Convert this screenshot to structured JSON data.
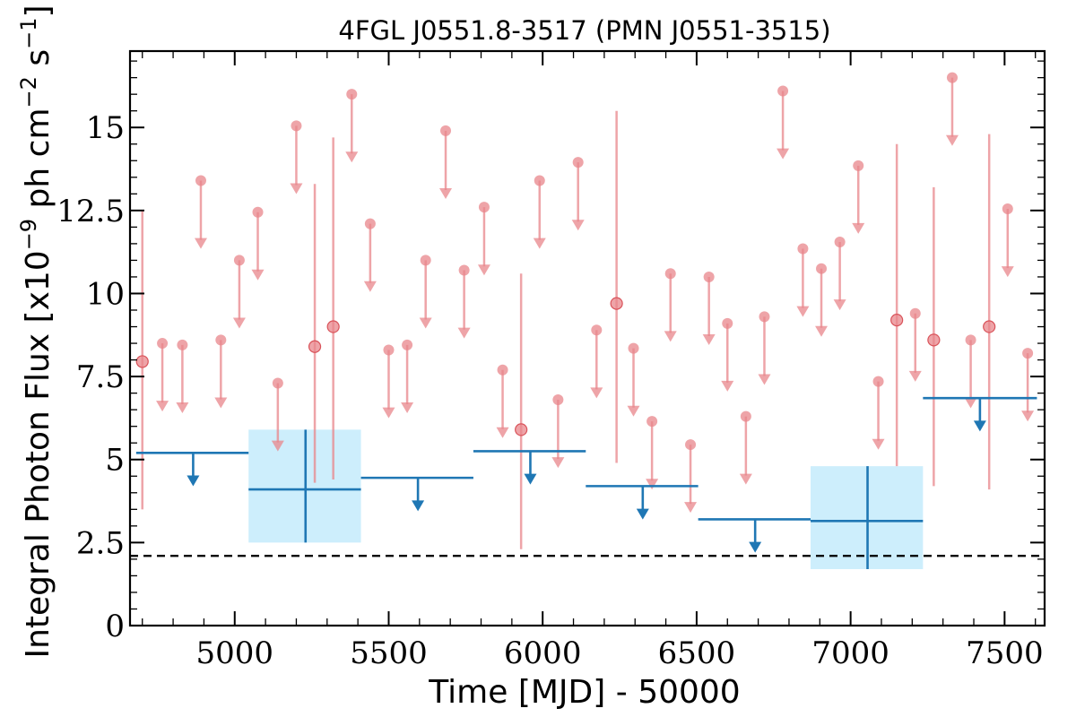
{
  "chart_data": {
    "type": "scatter",
    "title": "4FGL J0551.8-3517 (PMN J0551-3515)",
    "xlabel": "Time [MJD] - 50000",
    "ylabel_parts": [
      "Integral Photon Flux [x10",
      "−9",
      " ph cm",
      "−2",
      " s",
      "−1",
      "]"
    ],
    "xlim": [
      4660,
      7630
    ],
    "ylim": [
      0,
      17.3
    ],
    "x_ticks": [
      5000,
      5500,
      6000,
      6500,
      7000,
      7500
    ],
    "x_tick_labels": [
      "5000",
      "5500",
      "6000",
      "6500",
      "7000",
      "7500"
    ],
    "y_ticks": [
      0,
      2.5,
      5,
      7.5,
      10,
      12.5,
      15
    ],
    "y_tick_labels": [
      "0",
      "2.5",
      "5",
      "7.5",
      "10",
      "12.5",
      "15"
    ],
    "reference_line": {
      "y": 2.1,
      "style": "dashed",
      "color": "#000000"
    },
    "colors": {
      "short_bins": "#e8868b",
      "long_bins": "#1f77b4",
      "long_bins_band": "#cdeefc"
    },
    "series": [
      {
        "binning": "short",
        "detections": [
          {
            "x": 4700,
            "y": 7.95,
            "ylo": 3.5,
            "yhi": 12.5
          },
          {
            "x": 5260,
            "y": 8.4,
            "ylo": 4.3,
            "yhi": 13.3
          },
          {
            "x": 5320,
            "y": 9.0,
            "ylo": 4.4,
            "yhi": 14.7
          },
          {
            "x": 5930,
            "y": 5.9,
            "ylo": 2.3,
            "yhi": 10.6
          },
          {
            "x": 6240,
            "y": 9.7,
            "ylo": 4.9,
            "yhi": 15.5
          },
          {
            "x": 7150,
            "y": 9.2,
            "ylo": 4.8,
            "yhi": 14.5
          },
          {
            "x": 7270,
            "y": 8.6,
            "ylo": 4.2,
            "yhi": 13.2
          },
          {
            "x": 7450,
            "y": 9.0,
            "ylo": 4.1,
            "yhi": 14.8
          }
        ],
        "upper_limits": [
          {
            "x": 4765,
            "y": 8.5
          },
          {
            "x": 4830,
            "y": 8.45
          },
          {
            "x": 4890,
            "y": 13.4
          },
          {
            "x": 4955,
            "y": 8.6
          },
          {
            "x": 5015,
            "y": 11.0
          },
          {
            "x": 5075,
            "y": 12.45
          },
          {
            "x": 5140,
            "y": 7.3
          },
          {
            "x": 5200,
            "y": 15.05
          },
          {
            "x": 5380,
            "y": 16.0
          },
          {
            "x": 5440,
            "y": 12.1
          },
          {
            "x": 5500,
            "y": 8.3
          },
          {
            "x": 5560,
            "y": 8.45
          },
          {
            "x": 5620,
            "y": 11.0
          },
          {
            "x": 5685,
            "y": 14.9
          },
          {
            "x": 5745,
            "y": 10.7
          },
          {
            "x": 5810,
            "y": 12.6
          },
          {
            "x": 5870,
            "y": 7.7
          },
          {
            "x": 5990,
            "y": 13.4
          },
          {
            "x": 6050,
            "y": 6.8
          },
          {
            "x": 6115,
            "y": 13.95
          },
          {
            "x": 6175,
            "y": 8.9
          },
          {
            "x": 6295,
            "y": 8.35
          },
          {
            "x": 6355,
            "y": 6.15
          },
          {
            "x": 6415,
            "y": 10.6
          },
          {
            "x": 6480,
            "y": 5.45
          },
          {
            "x": 6540,
            "y": 10.5
          },
          {
            "x": 6600,
            "y": 9.1
          },
          {
            "x": 6660,
            "y": 6.3
          },
          {
            "x": 6720,
            "y": 9.3
          },
          {
            "x": 6780,
            "y": 16.1
          },
          {
            "x": 6845,
            "y": 11.35
          },
          {
            "x": 6905,
            "y": 10.75
          },
          {
            "x": 6965,
            "y": 11.55
          },
          {
            "x": 7025,
            "y": 13.85
          },
          {
            "x": 7090,
            "y": 7.35
          },
          {
            "x": 7210,
            "y": 9.4
          },
          {
            "x": 7330,
            "y": 16.5
          },
          {
            "x": 7390,
            "y": 8.6
          },
          {
            "x": 7510,
            "y": 12.55
          },
          {
            "x": 7575,
            "y": 8.2
          }
        ]
      },
      {
        "binning": "long",
        "detections": [
          {
            "x": 5230,
            "xlo": 5045,
            "xhi": 5410,
            "y": 4.1,
            "ylo": 2.5,
            "yhi": 5.9
          },
          {
            "x": 7055,
            "xlo": 6870,
            "xhi": 7235,
            "y": 3.15,
            "ylo": 1.7,
            "yhi": 4.8
          }
        ],
        "upper_limits": [
          {
            "x": 4865,
            "xlo": 4680,
            "xhi": 5045,
            "y": 5.2
          },
          {
            "x": 5595,
            "xlo": 5410,
            "xhi": 5775,
            "y": 4.45
          },
          {
            "x": 5960,
            "xlo": 5775,
            "xhi": 6140,
            "y": 5.25
          },
          {
            "x": 6325,
            "xlo": 6140,
            "xhi": 6505,
            "y": 4.2
          },
          {
            "x": 6690,
            "xlo": 6505,
            "xhi": 6870,
            "y": 3.2
          },
          {
            "x": 7420,
            "xlo": 7235,
            "xhi": 7605,
            "y": 6.85
          }
        ]
      }
    ]
  }
}
